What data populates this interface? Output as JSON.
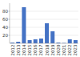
{
  "chart_data": {
    "type": "bar",
    "categories": [
      "2012",
      "2013",
      "2014",
      "2015",
      "2016",
      "2017",
      "2018",
      "2019",
      "2020",
      "2021",
      "2022",
      "2023"
    ],
    "values": [
      2,
      4,
      90,
      8,
      10,
      12,
      50,
      30,
      2,
      1,
      10,
      8
    ],
    "color": "#4472c4",
    "ylim": [
      0,
      100
    ],
    "yticks": [
      20,
      40,
      60,
      80
    ],
    "grid": true
  }
}
